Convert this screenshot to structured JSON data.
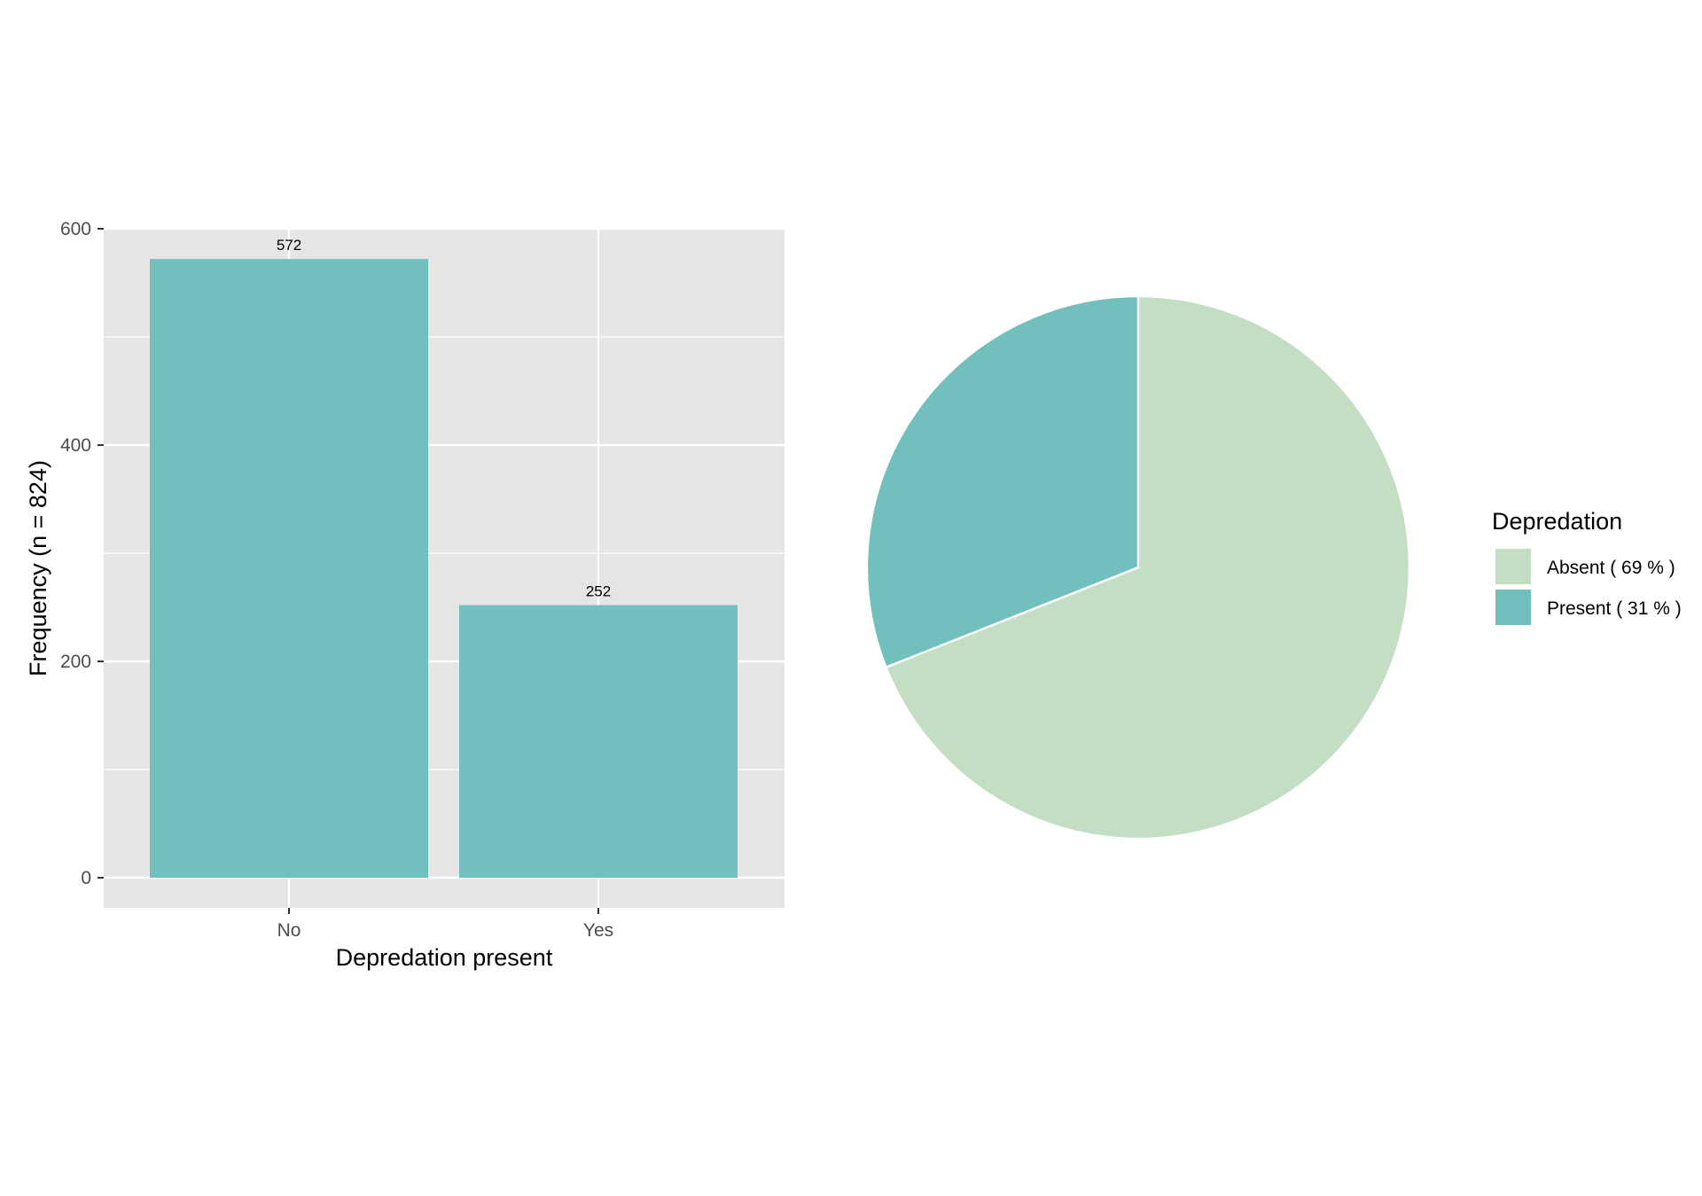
{
  "chart_data": [
    {
      "type": "bar",
      "categories": [
        "No",
        "Yes"
      ],
      "values": [
        572,
        252
      ],
      "data_labels": [
        "572",
        "252"
      ],
      "xlabel": "Depredation present",
      "ylabel": "Frequency (n = 824)",
      "ylim": [
        0,
        600
      ],
      "yticks": [
        0,
        200,
        400,
        600
      ],
      "ytick_labels": [
        "0",
        "200",
        "400",
        "600"
      ],
      "grid": true,
      "bar_color": "#72C0BD",
      "panel_color": "#E5E5E5",
      "grid_color": "#FFFFFF"
    },
    {
      "type": "pie",
      "categories": [
        "Absent",
        "Present"
      ],
      "values": [
        69,
        31
      ],
      "legend_title": "Depredation",
      "legend_labels": [
        "Absent ( 69 % )",
        "Present ( 31 % )"
      ],
      "legend_position": "right",
      "colors": [
        "#C3DEC2",
        "#72C0BD"
      ]
    }
  ]
}
